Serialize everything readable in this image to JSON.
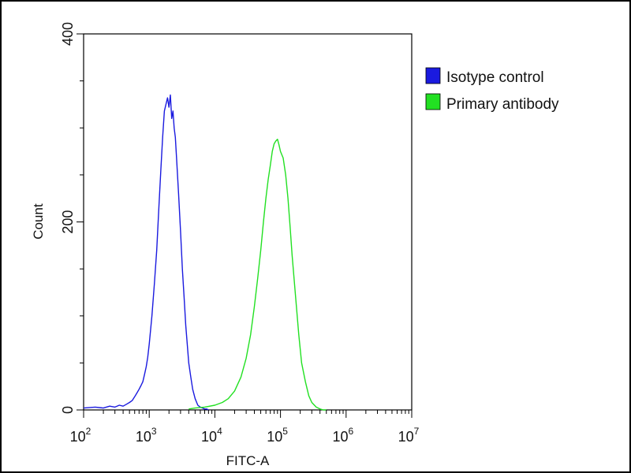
{
  "chart_data": {
    "type": "line",
    "title": "",
    "xlabel": "FITC-A",
    "ylabel": "Count",
    "x_scale": "log",
    "xlim": [
      100,
      10000000
    ],
    "ylim": [
      0,
      400
    ],
    "x_ticks": [
      {
        "base": "10",
        "exp": "2"
      },
      {
        "base": "10",
        "exp": "3"
      },
      {
        "base": "10",
        "exp": "4"
      },
      {
        "base": "10",
        "exp": "5"
      },
      {
        "base": "10",
        "exp": "6"
      },
      {
        "base": "10",
        "exp": "7"
      }
    ],
    "y_ticks": [
      "0",
      "200",
      "400"
    ],
    "y_tick_values": [
      0,
      200,
      400
    ],
    "grid": false,
    "legend_position": "top-right",
    "series": [
      {
        "name": "Isotype control",
        "color": "#1a1adf",
        "x": [
          100,
          150,
          200,
          250,
          300,
          350,
          400,
          450,
          500,
          550,
          600,
          650,
          700,
          750,
          800,
          850,
          900,
          950,
          1000,
          1100,
          1200,
          1300,
          1400,
          1500,
          1600,
          1700,
          1800,
          1900,
          2000,
          2100,
          2200,
          2300,
          2400,
          2500,
          2600,
          2800,
          3000,
          3200,
          3400,
          3600,
          3800,
          4000,
          4300,
          4600,
          5000,
          5500,
          6000,
          6500,
          7000,
          7500,
          8000
        ],
        "y": [
          2,
          3,
          2,
          4,
          3,
          5,
          4,
          6,
          8,
          10,
          14,
          18,
          22,
          26,
          30,
          38,
          46,
          56,
          70,
          100,
          135,
          170,
          215,
          255,
          290,
          318,
          325,
          332,
          322,
          335,
          310,
          318,
          300,
          290,
          270,
          230,
          190,
          150,
          120,
          90,
          70,
          50,
          35,
          22,
          12,
          5,
          3,
          2,
          1,
          1,
          0
        ]
      },
      {
        "name": "Primary antibody",
        "color": "#22e022",
        "x": [
          4000,
          5000,
          7000,
          10000,
          13000,
          16000,
          20000,
          25000,
          30000,
          35000,
          40000,
          45000,
          50000,
          55000,
          60000,
          65000,
          70000,
          75000,
          80000,
          85000,
          90000,
          95000,
          100000,
          110000,
          120000,
          130000,
          140000,
          150000,
          170000,
          190000,
          210000,
          240000,
          270000,
          300000,
          350000,
          400000,
          450000,
          500000
        ],
        "y": [
          1,
          2,
          3,
          5,
          8,
          12,
          20,
          35,
          55,
          80,
          110,
          140,
          170,
          200,
          225,
          245,
          260,
          275,
          283,
          286,
          288,
          282,
          275,
          268,
          250,
          225,
          195,
          165,
          120,
          80,
          50,
          30,
          15,
          8,
          3,
          1,
          0,
          0
        ]
      }
    ]
  }
}
